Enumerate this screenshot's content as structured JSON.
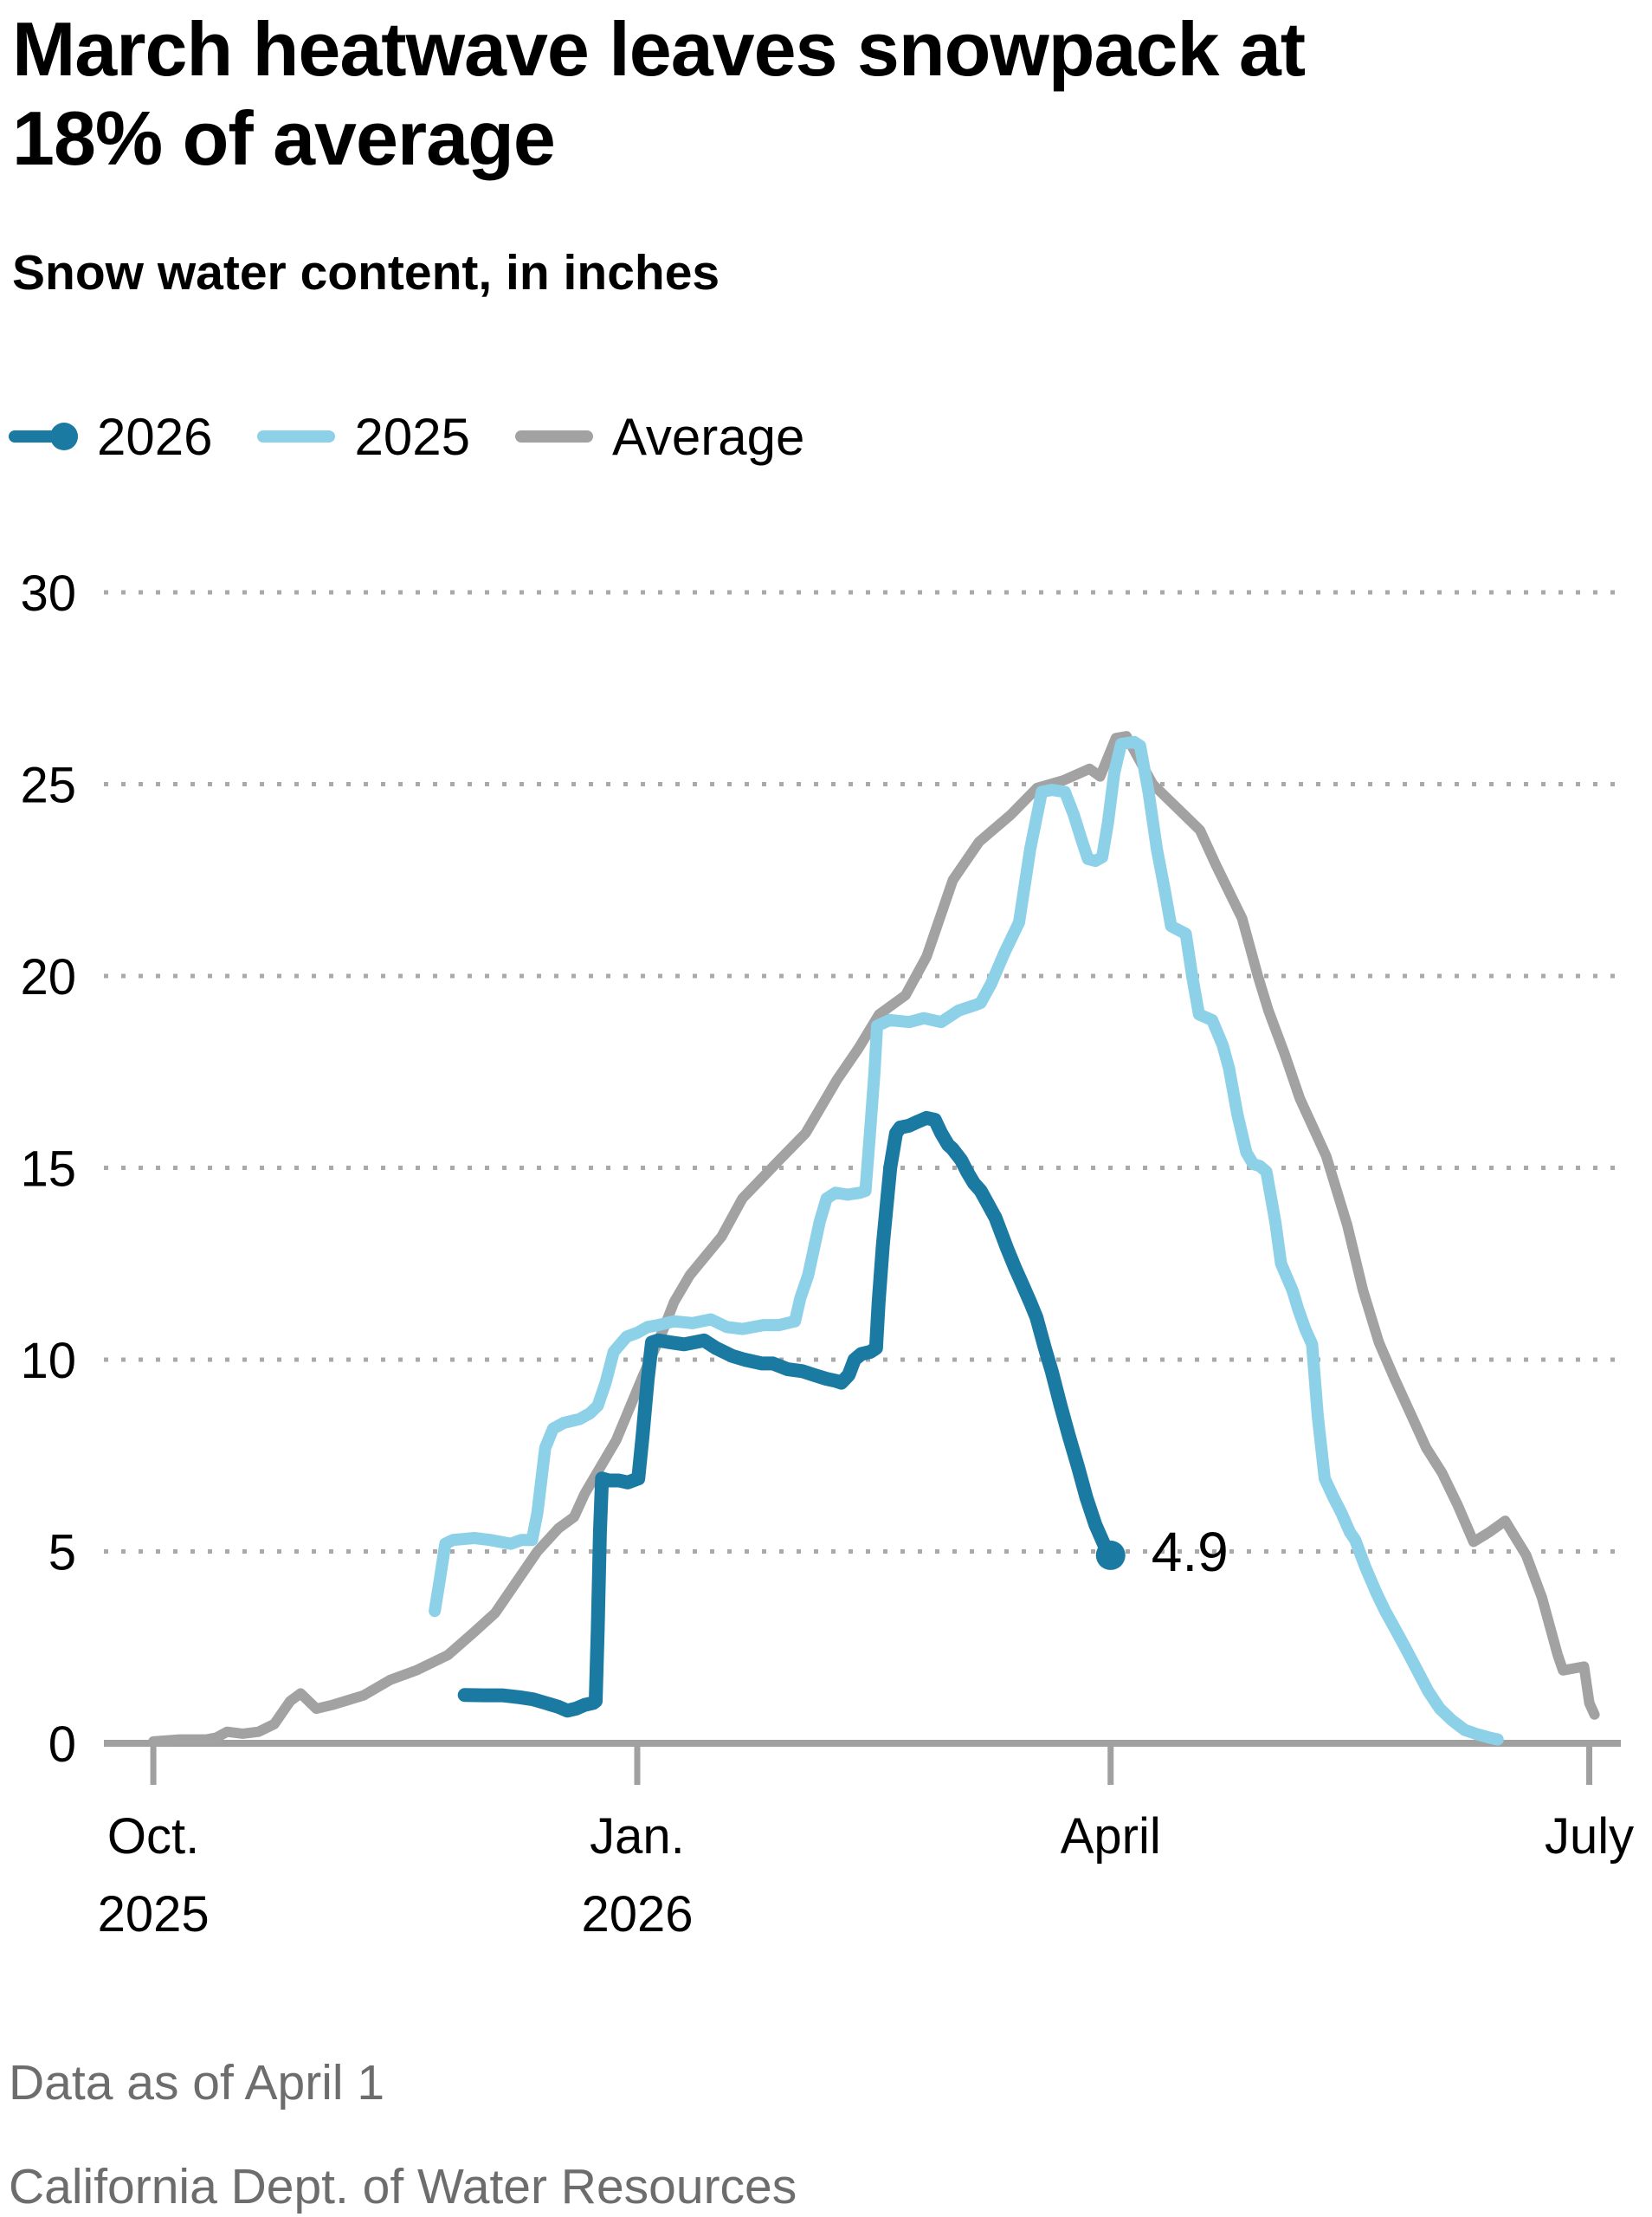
{
  "title": "March heatwave leaves snowpack at 18% of average",
  "subtitle": "Snow water content, in inches",
  "legend": [
    {
      "label": "2026",
      "color": "#1a7aa2",
      "marker": true
    },
    {
      "label": "2025",
      "color": "#8dd1e8",
      "marker": false
    },
    {
      "label": "Average",
      "color": "#a2a2a2",
      "marker": false
    }
  ],
  "notes": {
    "line1": "Data as of April 1",
    "line2": "California Dept. of Water Resources"
  },
  "chart_data": {
    "type": "line",
    "title": "March heatwave leaves snowpack at 18% of average",
    "subtitle": "Snow water content, in inches",
    "ylabel": "Snow water content, in inches",
    "ylim": [
      0,
      30
    ],
    "yticks": [
      0,
      5,
      10,
      15,
      20,
      25,
      30
    ],
    "grid": "dotted horizontal",
    "legend_position": "top",
    "x_unit": "days since Oct 1, 2025",
    "x_domain_days": [
      -9.4,
      279
    ],
    "x_ticks": [
      {
        "day": 0,
        "label": "Oct.",
        "sublabel": "2025"
      },
      {
        "day": 92,
        "label": "Jan.",
        "sublabel": "2026"
      },
      {
        "day": 182,
        "label": "April",
        "sublabel": ""
      },
      {
        "day": 273,
        "label": "July",
        "sublabel": ""
      }
    ],
    "annotation": {
      "series": "2026",
      "day": 182,
      "value": 4.9,
      "label": "4.9"
    },
    "colors": {
      "2026": "#1a7aa2",
      "2025": "#8dd1e8",
      "Average": "#a2a2a2",
      "grid": "#a9a9a9",
      "axis": "#a0a0a0",
      "note_text": "#6d6d6d",
      "label_text": "#000000"
    },
    "series": [
      {
        "name": "Average",
        "color": "#a2a2a2",
        "stroke_width": 12,
        "end_marker": false,
        "points": [
          [
            0,
            0.05
          ],
          [
            5,
            0.1
          ],
          [
            10,
            0.1
          ],
          [
            12,
            0.15
          ],
          [
            14,
            0.3
          ],
          [
            17,
            0.25
          ],
          [
            20,
            0.3
          ],
          [
            23,
            0.5
          ],
          [
            26,
            1.1
          ],
          [
            28,
            1.3
          ],
          [
            31,
            0.9
          ],
          [
            34,
            1.0
          ],
          [
            40,
            1.25
          ],
          [
            45,
            1.65
          ],
          [
            50,
            1.9
          ],
          [
            56,
            2.3
          ],
          [
            61,
            2.9
          ],
          [
            65,
            3.4
          ],
          [
            68,
            4.0
          ],
          [
            73,
            5.0
          ],
          [
            77,
            5.6
          ],
          [
            80,
            5.9
          ],
          [
            82,
            6.5
          ],
          [
            88,
            7.9
          ],
          [
            93,
            9.55
          ],
          [
            97,
            10.8
          ],
          [
            99,
            11.5
          ],
          [
            102,
            12.2
          ],
          [
            108,
            13.2
          ],
          [
            112,
            14.2
          ],
          [
            119,
            15.2
          ],
          [
            124,
            15.9
          ],
          [
            130,
            17.3
          ],
          [
            134,
            18.1
          ],
          [
            138,
            19.0
          ],
          [
            143,
            19.5
          ],
          [
            147,
            20.5
          ],
          [
            152,
            22.5
          ],
          [
            157,
            23.5
          ],
          [
            163,
            24.2
          ],
          [
            168,
            24.9
          ],
          [
            173,
            25.1
          ],
          [
            178,
            25.4
          ],
          [
            180,
            25.2
          ],
          [
            183,
            26.2
          ],
          [
            185,
            26.25
          ],
          [
            190,
            25.0
          ],
          [
            196,
            24.2
          ],
          [
            199,
            23.8
          ],
          [
            202,
            22.9
          ],
          [
            207,
            21.5
          ],
          [
            210,
            20.0
          ],
          [
            212,
            19.1
          ],
          [
            215,
            18.0
          ],
          [
            218,
            16.8
          ],
          [
            221,
            15.9
          ],
          [
            223,
            15.3
          ],
          [
            227,
            13.5
          ],
          [
            230,
            11.8
          ],
          [
            233,
            10.45
          ],
          [
            236,
            9.5
          ],
          [
            239,
            8.6
          ],
          [
            242,
            7.7
          ],
          [
            245,
            7.05
          ],
          [
            248,
            6.2
          ],
          [
            251,
            5.25
          ],
          [
            254,
            5.5
          ],
          [
            257,
            5.8
          ],
          [
            261,
            4.9
          ],
          [
            264,
            3.8
          ],
          [
            267,
            2.3
          ],
          [
            268,
            1.9
          ],
          [
            272,
            2.0
          ],
          [
            273,
            1.05
          ],
          [
            274,
            0.75
          ]
        ]
      },
      {
        "name": "2025",
        "color": "#8dd1e8",
        "stroke_width": 14,
        "end_marker": false,
        "points": [
          [
            53.5,
            3.45
          ],
          [
            54.5,
            4.3
          ],
          [
            55.5,
            5.2
          ],
          [
            57,
            5.3
          ],
          [
            61,
            5.35
          ],
          [
            64,
            5.3
          ],
          [
            68,
            5.2
          ],
          [
            70,
            5.3
          ],
          [
            72,
            5.3
          ],
          [
            73,
            6.0
          ],
          [
            74.5,
            7.7
          ],
          [
            76,
            8.2
          ],
          [
            78,
            8.35
          ],
          [
            81,
            8.45
          ],
          [
            83,
            8.6
          ],
          [
            84.5,
            8.8
          ],
          [
            86,
            9.4
          ],
          [
            87.5,
            10.2
          ],
          [
            90,
            10.6
          ],
          [
            92,
            10.7
          ],
          [
            94,
            10.85
          ],
          [
            96,
            10.9
          ],
          [
            99,
            11.0
          ],
          [
            102.5,
            10.95
          ],
          [
            106,
            11.05
          ],
          [
            109,
            10.85
          ],
          [
            112,
            10.8
          ],
          [
            116,
            10.9
          ],
          [
            119,
            10.9
          ],
          [
            122,
            11.0
          ],
          [
            123,
            11.6
          ],
          [
            124.5,
            12.2
          ],
          [
            125.6,
            12.9
          ],
          [
            126.7,
            13.6
          ],
          [
            128,
            14.2
          ],
          [
            129.7,
            14.35
          ],
          [
            132,
            14.3
          ],
          [
            134.3,
            14.35
          ],
          [
            135.4,
            14.4
          ],
          [
            136.3,
            16.0
          ],
          [
            137.1,
            17.5
          ],
          [
            137.6,
            18.7
          ],
          [
            140,
            18.85
          ],
          [
            143.7,
            18.8
          ],
          [
            146.5,
            18.9
          ],
          [
            149.8,
            18.8
          ],
          [
            153.1,
            19.1
          ],
          [
            156.4,
            19.25
          ],
          [
            157.3,
            19.3
          ],
          [
            159.3,
            19.8
          ],
          [
            161.8,
            20.6
          ],
          [
            164.6,
            21.4
          ],
          [
            166.7,
            23.3
          ],
          [
            168.9,
            24.8
          ],
          [
            170.8,
            24.85
          ],
          [
            173.3,
            24.8
          ],
          [
            175,
            24.2
          ],
          [
            176.6,
            23.5
          ],
          [
            177.7,
            23.05
          ],
          [
            179.1,
            23.0
          ],
          [
            180.4,
            23.1
          ],
          [
            181.5,
            24.0
          ],
          [
            182.7,
            25.3
          ],
          [
            184,
            26.05
          ],
          [
            186.5,
            26.1
          ],
          [
            187.6,
            26.0
          ],
          [
            189.2,
            24.8
          ],
          [
            190.8,
            23.3
          ],
          [
            192.2,
            22.3
          ],
          [
            193.5,
            21.3
          ],
          [
            196.3,
            21.1
          ],
          [
            197.5,
            20.0
          ],
          [
            198.8,
            19.0
          ],
          [
            201.3,
            18.85
          ],
          [
            203.3,
            18.2
          ],
          [
            204.5,
            17.6
          ],
          [
            206.1,
            16.4
          ],
          [
            207.8,
            15.4
          ],
          [
            209.1,
            15.1
          ],
          [
            210.3,
            15.05
          ],
          [
            211.6,
            14.9
          ],
          [
            213.3,
            13.6
          ],
          [
            214.4,
            12.5
          ],
          [
            216.6,
            11.8
          ],
          [
            217.7,
            11.3
          ],
          [
            219,
            10.8
          ],
          [
            220.3,
            10.4
          ],
          [
            221.4,
            8.5
          ],
          [
            222.7,
            6.9
          ],
          [
            224.4,
            6.4
          ],
          [
            225.9,
            6.0
          ],
          [
            227.5,
            5.5
          ],
          [
            228.5,
            5.3
          ],
          [
            230.4,
            4.6
          ],
          [
            232.6,
            3.9
          ],
          [
            234.2,
            3.45
          ],
          [
            236.2,
            2.95
          ],
          [
            238,
            2.5
          ],
          [
            240.3,
            1.9
          ],
          [
            242.4,
            1.35
          ],
          [
            244.6,
            0.9
          ],
          [
            246.9,
            0.6
          ],
          [
            249.3,
            0.35
          ],
          [
            251.8,
            0.23
          ],
          [
            254,
            0.15
          ],
          [
            255.6,
            0.1
          ]
        ]
      },
      {
        "name": "2026",
        "color": "#1a7aa2",
        "stroke_width": 16,
        "end_marker": true,
        "end_label": "4.9",
        "points": [
          [
            59.2,
            1.26
          ],
          [
            63,
            1.25
          ],
          [
            66.3,
            1.25
          ],
          [
            69.6,
            1.2
          ],
          [
            72.1,
            1.15
          ],
          [
            74.6,
            1.05
          ],
          [
            77,
            0.95
          ],
          [
            78.7,
            0.85
          ],
          [
            80.3,
            0.9
          ],
          [
            82,
            1.0
          ],
          [
            83.6,
            1.05
          ],
          [
            84.1,
            1.1
          ],
          [
            84.5,
            3.0
          ],
          [
            84.9,
            5.5
          ],
          [
            85.3,
            6.9
          ],
          [
            86.6,
            6.85
          ],
          [
            88.5,
            6.85
          ],
          [
            90.2,
            6.8
          ],
          [
            92.2,
            6.9
          ],
          [
            93,
            8.0
          ],
          [
            94,
            9.5
          ],
          [
            94.8,
            10.45
          ],
          [
            96,
            10.5
          ],
          [
            98.4,
            10.45
          ],
          [
            100.9,
            10.4
          ],
          [
            104.7,
            10.5
          ],
          [
            107,
            10.3
          ],
          [
            110,
            10.1
          ],
          [
            112.4,
            10.0
          ],
          [
            115.7,
            9.9
          ],
          [
            117.8,
            9.9
          ],
          [
            120.6,
            9.75
          ],
          [
            123.4,
            9.7
          ],
          [
            125.6,
            9.6
          ],
          [
            128,
            9.5
          ],
          [
            129.7,
            9.45
          ],
          [
            130.8,
            9.4
          ],
          [
            132.2,
            9.6
          ],
          [
            133.3,
            10.0
          ],
          [
            134.6,
            10.15
          ],
          [
            136.3,
            10.2
          ],
          [
            137.4,
            10.3
          ],
          [
            137.9,
            11.5
          ],
          [
            138.7,
            13.0
          ],
          [
            140.1,
            15.0
          ],
          [
            141.2,
            15.9
          ],
          [
            142,
            16.05
          ],
          [
            143.7,
            16.1
          ],
          [
            145.3,
            16.2
          ],
          [
            147,
            16.3
          ],
          [
            148.6,
            16.25
          ],
          [
            149.8,
            15.9
          ],
          [
            151.1,
            15.6
          ],
          [
            151.9,
            15.5
          ],
          [
            153.6,
            15.2
          ],
          [
            154.7,
            14.9
          ],
          [
            156,
            14.6
          ],
          [
            157.3,
            14.4
          ],
          [
            158.5,
            14.1
          ],
          [
            160.1,
            13.7
          ],
          [
            162.3,
            12.9
          ],
          [
            163.8,
            12.4
          ],
          [
            165.1,
            12.0
          ],
          [
            166.7,
            11.5
          ],
          [
            167.9,
            11.1
          ],
          [
            169.5,
            10.3
          ],
          [
            170.8,
            9.7
          ],
          [
            172.5,
            8.8
          ],
          [
            174.1,
            8.0
          ],
          [
            175.8,
            7.2
          ],
          [
            177.4,
            6.4
          ],
          [
            179.1,
            5.7
          ],
          [
            180.7,
            5.2
          ],
          [
            182,
            4.9
          ]
        ]
      }
    ]
  }
}
